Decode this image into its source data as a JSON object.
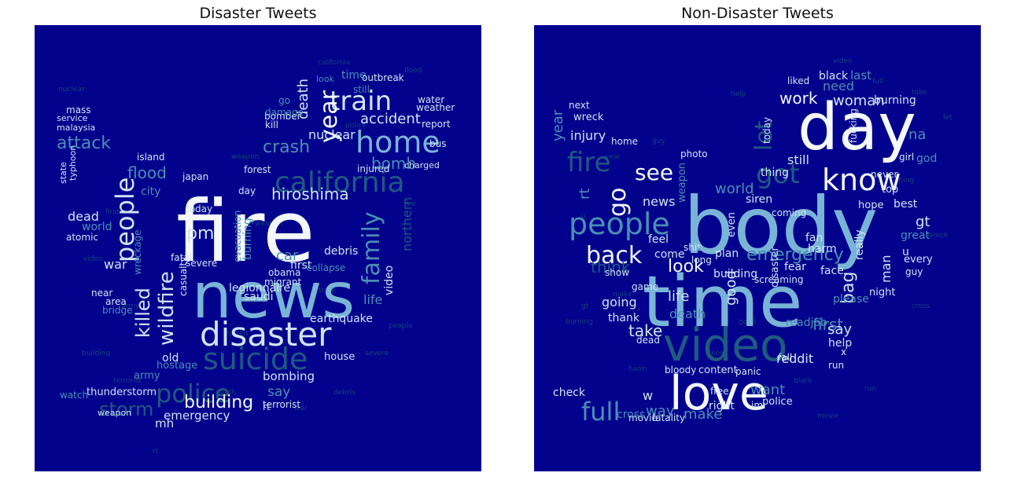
{
  "palette": {
    "background": "#02028c",
    "white": "#f4f8fb",
    "light": "#cfe4f3",
    "mid": "#79b4d6",
    "teal": "#4a8fb3",
    "dark": "#1f5a80",
    "faint": "#17427a"
  },
  "panels": [
    {
      "title": "Disaster Tweets",
      "words": [
        {
          "text": "fire",
          "tone": "white"
        },
        {
          "text": "news",
          "tone": "mid"
        },
        {
          "text": "disaster",
          "tone": "light"
        },
        {
          "text": "california",
          "tone": "dark"
        },
        {
          "text": "home",
          "tone": "mid"
        },
        {
          "text": "train",
          "tone": "light"
        },
        {
          "text": "year",
          "tone": "white"
        },
        {
          "text": "people",
          "tone": "light"
        },
        {
          "text": "family",
          "tone": "teal"
        },
        {
          "text": "suicide",
          "tone": "dark"
        },
        {
          "text": "police",
          "tone": "dark"
        },
        {
          "text": "killed",
          "tone": "light"
        },
        {
          "text": "wildfire",
          "tone": "light"
        },
        {
          "text": "hiroshima",
          "tone": "light"
        },
        {
          "text": "building",
          "tone": "white"
        },
        {
          "text": "storm",
          "tone": "dark"
        },
        {
          "text": "attack",
          "tone": "teal"
        },
        {
          "text": "flood",
          "tone": "teal"
        },
        {
          "text": "crash",
          "tone": "teal"
        },
        {
          "text": "bomb",
          "tone": "teal"
        },
        {
          "text": "accident",
          "tone": "light"
        },
        {
          "text": "death",
          "tone": "light"
        },
        {
          "text": "pm",
          "tone": "light"
        },
        {
          "text": "bombing",
          "tone": "light"
        },
        {
          "text": "nuclear",
          "tone": "light"
        },
        {
          "text": "emergency",
          "tone": "light"
        },
        {
          "text": "life",
          "tone": "teal"
        },
        {
          "text": "dead",
          "tone": "light"
        },
        {
          "text": "war",
          "tone": "light"
        },
        {
          "text": "mh",
          "tone": "light"
        },
        {
          "text": "car",
          "tone": "teal"
        },
        {
          "text": "video",
          "tone": "light"
        },
        {
          "text": "northern",
          "tone": "dark"
        },
        {
          "text": "burning",
          "tone": "teal"
        },
        {
          "text": "evacuation",
          "tone": "teal"
        },
        {
          "text": "debris",
          "tone": "light"
        },
        {
          "text": "legionnaire",
          "tone": "light"
        },
        {
          "text": "earthquake",
          "tone": "light"
        },
        {
          "text": "first",
          "tone": "light"
        },
        {
          "text": "old",
          "tone": "light"
        },
        {
          "text": "say",
          "tone": "teal"
        },
        {
          "text": "house",
          "tone": "light"
        },
        {
          "text": "terrorist",
          "tone": "light"
        },
        {
          "text": "thunderstorm",
          "tone": "light"
        },
        {
          "text": "watch",
          "tone": "teal"
        },
        {
          "text": "weapon",
          "tone": "light"
        },
        {
          "text": "outbreak",
          "tone": "light"
        },
        {
          "text": "time",
          "tone": "teal"
        },
        {
          "text": "water",
          "tone": "light"
        },
        {
          "text": "weather",
          "tone": "light"
        },
        {
          "text": "report",
          "tone": "light"
        },
        {
          "text": "bus",
          "tone": "light"
        },
        {
          "text": "injured",
          "tone": "light"
        },
        {
          "text": "forest",
          "tone": "light"
        },
        {
          "text": "island",
          "tone": "light"
        },
        {
          "text": "japan",
          "tone": "light"
        },
        {
          "text": "mass",
          "tone": "light"
        },
        {
          "text": "service",
          "tone": "light"
        },
        {
          "text": "malaysia",
          "tone": "light"
        },
        {
          "text": "state",
          "tone": "light"
        },
        {
          "text": "typhoon",
          "tone": "light"
        },
        {
          "text": "atomic",
          "tone": "light"
        },
        {
          "text": "obama",
          "tone": "light"
        },
        {
          "text": "migrant",
          "tone": "light"
        },
        {
          "text": "collapse",
          "tone": "teal"
        },
        {
          "text": "saudi",
          "tone": "light"
        },
        {
          "text": "severe",
          "tone": "light"
        },
        {
          "text": "today",
          "tone": "light"
        },
        {
          "text": "fatal",
          "tone": "light"
        },
        {
          "text": "casualty",
          "tone": "light"
        },
        {
          "text": "area",
          "tone": "light"
        },
        {
          "text": "bridge",
          "tone": "teal"
        },
        {
          "text": "near",
          "tone": "light"
        },
        {
          "text": "army",
          "tone": "teal"
        },
        {
          "text": "hostage",
          "tone": "teal"
        },
        {
          "text": "kill",
          "tone": "light"
        },
        {
          "text": "bomber",
          "tone": "light"
        },
        {
          "text": "damage",
          "tone": "teal"
        },
        {
          "text": "day",
          "tone": "light"
        },
        {
          "text": "city",
          "tone": "teal"
        },
        {
          "text": "rt",
          "tone": "light"
        },
        {
          "text": "look",
          "tone": "teal"
        },
        {
          "text": "go",
          "tone": "teal"
        },
        {
          "text": "still",
          "tone": "teal"
        },
        {
          "text": "world",
          "tone": "teal"
        },
        {
          "text": "charged",
          "tone": "light"
        },
        {
          "text": "wreckage",
          "tone": "teal"
        }
      ]
    },
    {
      "title": "Non-Disaster Tweets",
      "words": [
        {
          "text": "body",
          "tone": "mid"
        },
        {
          "text": "time",
          "tone": "mid"
        },
        {
          "text": "day",
          "tone": "white"
        },
        {
          "text": "video",
          "tone": "dark"
        },
        {
          "text": "love",
          "tone": "white"
        },
        {
          "text": "people",
          "tone": "teal"
        },
        {
          "text": "know",
          "tone": "white"
        },
        {
          "text": "fire",
          "tone": "dark"
        },
        {
          "text": "got",
          "tone": "dark"
        },
        {
          "text": "back",
          "tone": "white"
        },
        {
          "text": "full",
          "tone": "teal"
        },
        {
          "text": "go",
          "tone": "white"
        },
        {
          "text": "see",
          "tone": "white"
        },
        {
          "text": "let",
          "tone": "dark"
        },
        {
          "text": "look",
          "tone": "white"
        },
        {
          "text": "life",
          "tone": "light"
        },
        {
          "text": "bag",
          "tone": "light"
        },
        {
          "text": "take",
          "tone": "light"
        },
        {
          "text": "news",
          "tone": "light"
        },
        {
          "text": "world",
          "tone": "teal"
        },
        {
          "text": "make",
          "tone": "teal"
        },
        {
          "text": "way",
          "tone": "teal"
        },
        {
          "text": "work",
          "tone": "white"
        },
        {
          "text": "woman",
          "tone": "light"
        },
        {
          "text": "burning",
          "tone": "light"
        },
        {
          "text": "emergency",
          "tone": "teal"
        },
        {
          "text": "going",
          "tone": "light"
        },
        {
          "text": "good",
          "tone": "light"
        },
        {
          "text": "still",
          "tone": "light"
        },
        {
          "text": "first",
          "tone": "teal"
        },
        {
          "text": "man",
          "tone": "light"
        },
        {
          "text": "gt",
          "tone": "light"
        },
        {
          "text": "say",
          "tone": "light"
        },
        {
          "text": "want",
          "tone": "teal"
        },
        {
          "text": "black",
          "tone": "light"
        },
        {
          "text": "need",
          "tone": "teal"
        },
        {
          "text": "last",
          "tone": "teal"
        },
        {
          "text": "injury",
          "tone": "light"
        },
        {
          "text": "year",
          "tone": "teal"
        },
        {
          "text": "rt",
          "tone": "teal"
        },
        {
          "text": "think",
          "tone": "dark"
        },
        {
          "text": "death",
          "tone": "teal"
        },
        {
          "text": "thank",
          "tone": "light"
        },
        {
          "text": "feel",
          "tone": "light"
        },
        {
          "text": "come",
          "tone": "light"
        },
        {
          "text": "help",
          "tone": "light"
        },
        {
          "text": "reddit",
          "tone": "light"
        },
        {
          "text": "right",
          "tone": "light"
        },
        {
          "text": "check",
          "tone": "light"
        },
        {
          "text": "best",
          "tone": "light"
        },
        {
          "text": "really",
          "tone": "light"
        },
        {
          "text": "even",
          "tone": "light"
        },
        {
          "text": "thing",
          "tone": "light"
        },
        {
          "text": "fear",
          "tone": "light"
        },
        {
          "text": "siren",
          "tone": "light"
        },
        {
          "text": "content",
          "tone": "light"
        },
        {
          "text": "building",
          "tone": "light"
        },
        {
          "text": "plan",
          "tone": "light"
        },
        {
          "text": "fan",
          "tone": "light"
        },
        {
          "text": "harm",
          "tone": "light"
        },
        {
          "text": "face",
          "tone": "light"
        },
        {
          "text": "top",
          "tone": "light"
        },
        {
          "text": "hope",
          "tone": "light"
        },
        {
          "text": "night",
          "tone": "light"
        },
        {
          "text": "im",
          "tone": "light"
        },
        {
          "text": "police",
          "tone": "light"
        },
        {
          "text": "movie",
          "tone": "light"
        },
        {
          "text": "fatality",
          "tone": "light"
        },
        {
          "text": "game",
          "tone": "light"
        },
        {
          "text": "show",
          "tone": "light"
        },
        {
          "text": "photo",
          "tone": "light"
        },
        {
          "text": "home",
          "tone": "light"
        },
        {
          "text": "next",
          "tone": "light"
        },
        {
          "text": "wreck",
          "tone": "light"
        },
        {
          "text": "never",
          "tone": "light"
        },
        {
          "text": "girl",
          "tone": "light"
        },
        {
          "text": "bloody",
          "tone": "light"
        },
        {
          "text": "disaster",
          "tone": "light"
        },
        {
          "text": "today",
          "tone": "light"
        },
        {
          "text": "every",
          "tone": "light"
        },
        {
          "text": "guy",
          "tone": "light"
        },
        {
          "text": "liked",
          "tone": "light"
        },
        {
          "text": "na",
          "tone": "teal"
        },
        {
          "text": "shit",
          "tone": "light"
        },
        {
          "text": "long",
          "tone": "light"
        },
        {
          "text": "weapon",
          "tone": "teal"
        },
        {
          "text": "fucking",
          "tone": "light"
        },
        {
          "text": "run",
          "tone": "light"
        },
        {
          "text": "panic",
          "tone": "light"
        },
        {
          "text": "readjob",
          "tone": "teal"
        },
        {
          "text": "fall",
          "tone": "light"
        },
        {
          "text": "coming",
          "tone": "light"
        },
        {
          "text": "please",
          "tone": "teal"
        },
        {
          "text": "great",
          "tone": "teal"
        },
        {
          "text": "u",
          "tone": "light"
        },
        {
          "text": "w",
          "tone": "light"
        },
        {
          "text": "god",
          "tone": "teal"
        },
        {
          "text": "screaming",
          "tone": "light"
        },
        {
          "text": "free",
          "tone": "light"
        },
        {
          "text": "dead",
          "tone": "light"
        },
        {
          "text": "x",
          "tone": "light"
        },
        {
          "text": "cross",
          "tone": "teal"
        }
      ]
    }
  ]
}
